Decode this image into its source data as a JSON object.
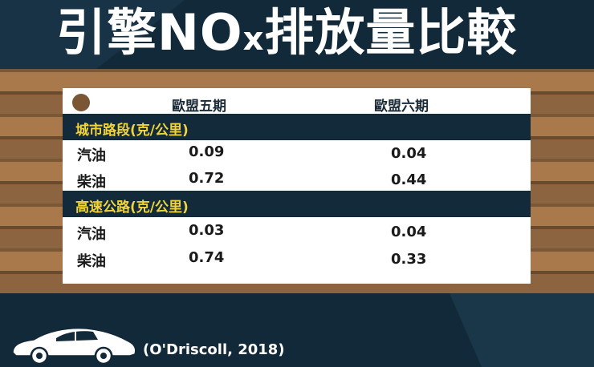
{
  "title": {
    "main": "引擎NO",
    "sub": "x",
    "rest": "排放量比較"
  },
  "table": {
    "columns": [
      "歐盟五期",
      "歐盟六期"
    ],
    "sections": [
      {
        "label": "城市路段(克/公里)",
        "rows": [
          {
            "label": "汽油",
            "euro5": "0.09",
            "euro6": "0.04"
          },
          {
            "label": "柴油",
            "euro5": "0.72",
            "euro6": "0.44"
          }
        ]
      },
      {
        "label": "高速公路(克/公里)",
        "rows": [
          {
            "label": "汽油",
            "euro5": "0.03",
            "euro6": "0.04"
          },
          {
            "label": "柴油",
            "euro5": "0.74",
            "euro6": "0.33"
          }
        ]
      }
    ]
  },
  "citation": "(O'Driscoll, 2018)",
  "colors": {
    "background": "#12293a",
    "stripe_light": "#a9794b",
    "stripe_dark": "#7a5735",
    "section_bar": "#132a3a",
    "section_text": "#f2d43a"
  },
  "icons": [
    "disc-icon",
    "sports-car-icon"
  ]
}
